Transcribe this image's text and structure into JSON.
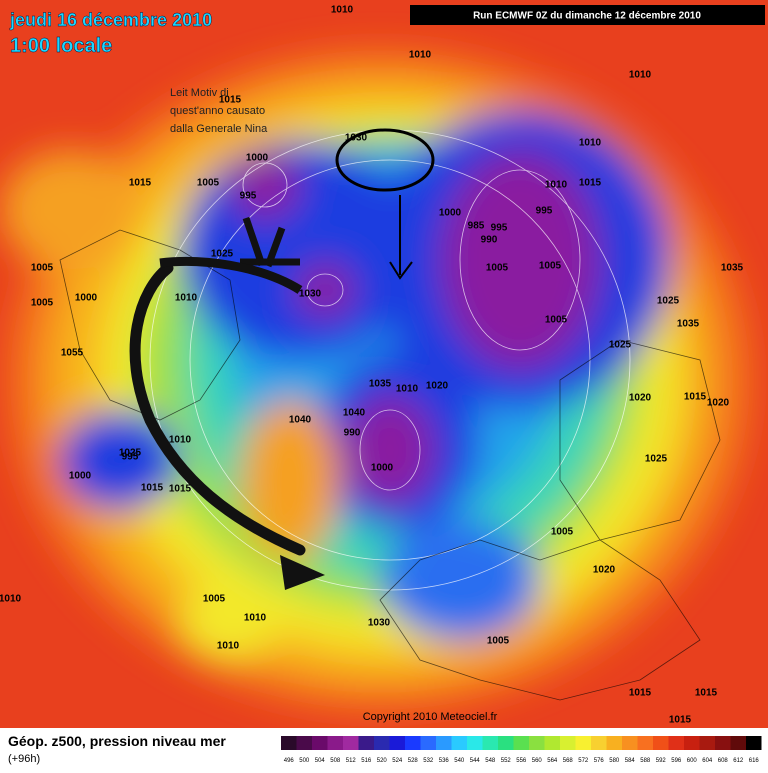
{
  "header": {
    "date": "jeudi 16 décembre 2010",
    "time": "1:00 locale",
    "run": "Run ECMWF 0Z du dimanche 12 décembre 2010"
  },
  "annotation": [
    "Leit Motiv di",
    "quest'anno causato",
    "dalla Generale Nina"
  ],
  "footer": {
    "title": "Géop. z500, pression niveau mer",
    "lead": "(+96h)",
    "copyright": "Copyright 2010 Meteociel.fr"
  },
  "legend": {
    "labels": [
      496,
      500,
      504,
      508,
      512,
      516,
      520,
      524,
      528,
      532,
      536,
      540,
      544,
      548,
      552,
      556,
      560,
      564,
      568,
      572,
      576,
      580,
      584,
      588,
      592,
      596,
      600,
      604,
      608,
      612,
      616
    ]
  },
  "pressure_labels": [
    "1010",
    "1010",
    "1010",
    "1015",
    "1000",
    "995",
    "1005",
    "1015",
    "1025",
    "1005",
    "1005",
    "1000",
    "1010",
    "1030",
    "1000",
    "985",
    "990",
    "995",
    "1005",
    "995",
    "1005",
    "1010",
    "1010",
    "1015",
    "1035",
    "1025",
    "1035",
    "1005",
    "1030",
    "1010",
    "1020",
    "1035",
    "1040",
    "990",
    "1000",
    "1015",
    "1025",
    "1010",
    "1055",
    "1040",
    "1000",
    "995",
    "1015",
    "1005",
    "1010",
    "1010",
    "1005",
    "1030",
    "1005",
    "1020",
    "1015",
    "1015",
    "1015",
    "1010",
    "1020",
    "1025",
    "1015",
    "1020",
    "1025"
  ]
}
